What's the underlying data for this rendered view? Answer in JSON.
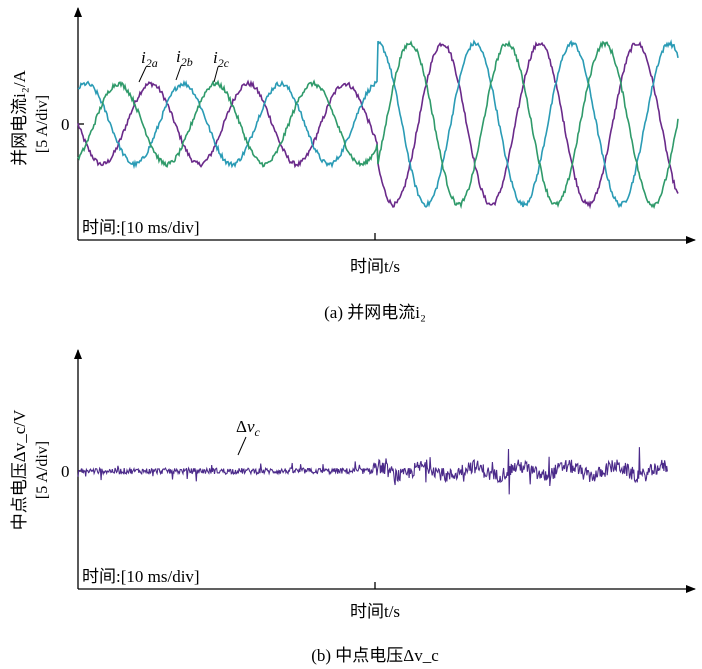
{
  "chart_data": [
    {
      "type": "line",
      "caption": "(a) 并网电流i₂",
      "ylabel": "并网电流i₂/A",
      "yscale": "[5 A/div]",
      "ytick_zero": "0",
      "xlabel": "时间t/s",
      "time_div": "时间:[10 ms/div]",
      "series_labels": [
        "i₂a",
        "i₂b",
        "i₂c"
      ],
      "colors": {
        "i2a": "#6a2a8a",
        "i2b": "#2a9bb5",
        "i2c": "#2f9a6a"
      },
      "amplitude_before_div": 1.0,
      "amplitude_after_div": 2.0,
      "step_time_div": 5.0,
      "x_range_div": [
        0,
        10
      ],
      "series": [
        {
          "name": "i₂a",
          "phase_deg": 180
        },
        {
          "name": "i₂b",
          "phase_deg": 60
        },
        {
          "name": "i₂c",
          "phase_deg": -60
        }
      ]
    },
    {
      "type": "line",
      "caption": "(b) 中点电压Δv_c",
      "ylabel": "中点电压Δv_c/V",
      "yscale": "[5 A/div]",
      "ytick_zero": "0",
      "xlabel": "时间t/s",
      "time_div": "时间:[10 ms/div]",
      "series_labels": [
        "Δv_c"
      ],
      "colors": {
        "dvc": "#4b2a8a"
      },
      "noise_before_div": 0.15,
      "noise_after_div": 0.35,
      "x_range_div": [
        0,
        10
      ]
    }
  ]
}
